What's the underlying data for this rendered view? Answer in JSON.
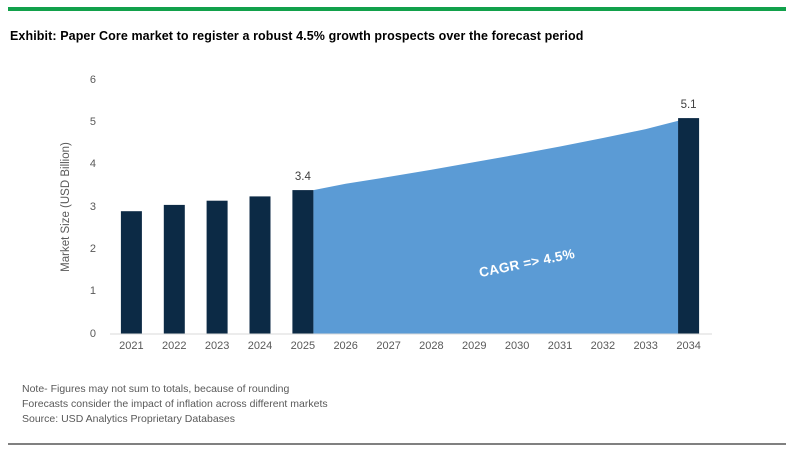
{
  "page": {
    "title": "Exhibit: Paper Core market to register a robust 4.5% growth prospects over the forecast period",
    "accent_green": "#12A14B",
    "rule_gray": "#808080"
  },
  "chart_data": {
    "type": "bar",
    "title": "Exhibit: Paper Core market to register a robust 4.5% growth prospects over the forecast period",
    "xlabel": "",
    "ylabel": "Market Size (USD Billion)",
    "ylim": [
      0,
      6
    ],
    "yticks": [
      0,
      1,
      2,
      3,
      4,
      5,
      6
    ],
    "grid": false,
    "legend": "none",
    "categories": [
      "2021",
      "2022",
      "2023",
      "2024",
      "2025",
      "2026",
      "2027",
      "2028",
      "2029",
      "2030",
      "2031",
      "2032",
      "2033",
      "2034"
    ],
    "series": [
      {
        "name": "Market Size bars",
        "type": "bar",
        "color": "#0C2A45",
        "values": [
          2.9,
          3.05,
          3.15,
          3.25,
          3.4,
          null,
          null,
          null,
          null,
          null,
          null,
          null,
          null,
          5.1
        ]
      },
      {
        "name": "Forecast wedge",
        "type": "area",
        "color": "#5B9BD5",
        "values": [
          null,
          null,
          null,
          null,
          3.4,
          3.55,
          3.71,
          3.88,
          4.06,
          4.24,
          4.43,
          4.63,
          4.84,
          5.1
        ]
      }
    ],
    "point_labels": [
      {
        "category_index": 4,
        "text": "3.4"
      },
      {
        "category_index": 13,
        "text": "5.1"
      }
    ],
    "annotation": {
      "text": "CAGR => 4.5%",
      "color": "#FFFFFF"
    },
    "axis_line_color": "#D9D9D9"
  },
  "footnotes": {
    "line1": "Note- Figures may not sum to totals, because of rounding",
    "line2": "Forecasts consider the impact of inflation across different markets",
    "line3": "Source: USD Analytics Proprietary Databases"
  }
}
